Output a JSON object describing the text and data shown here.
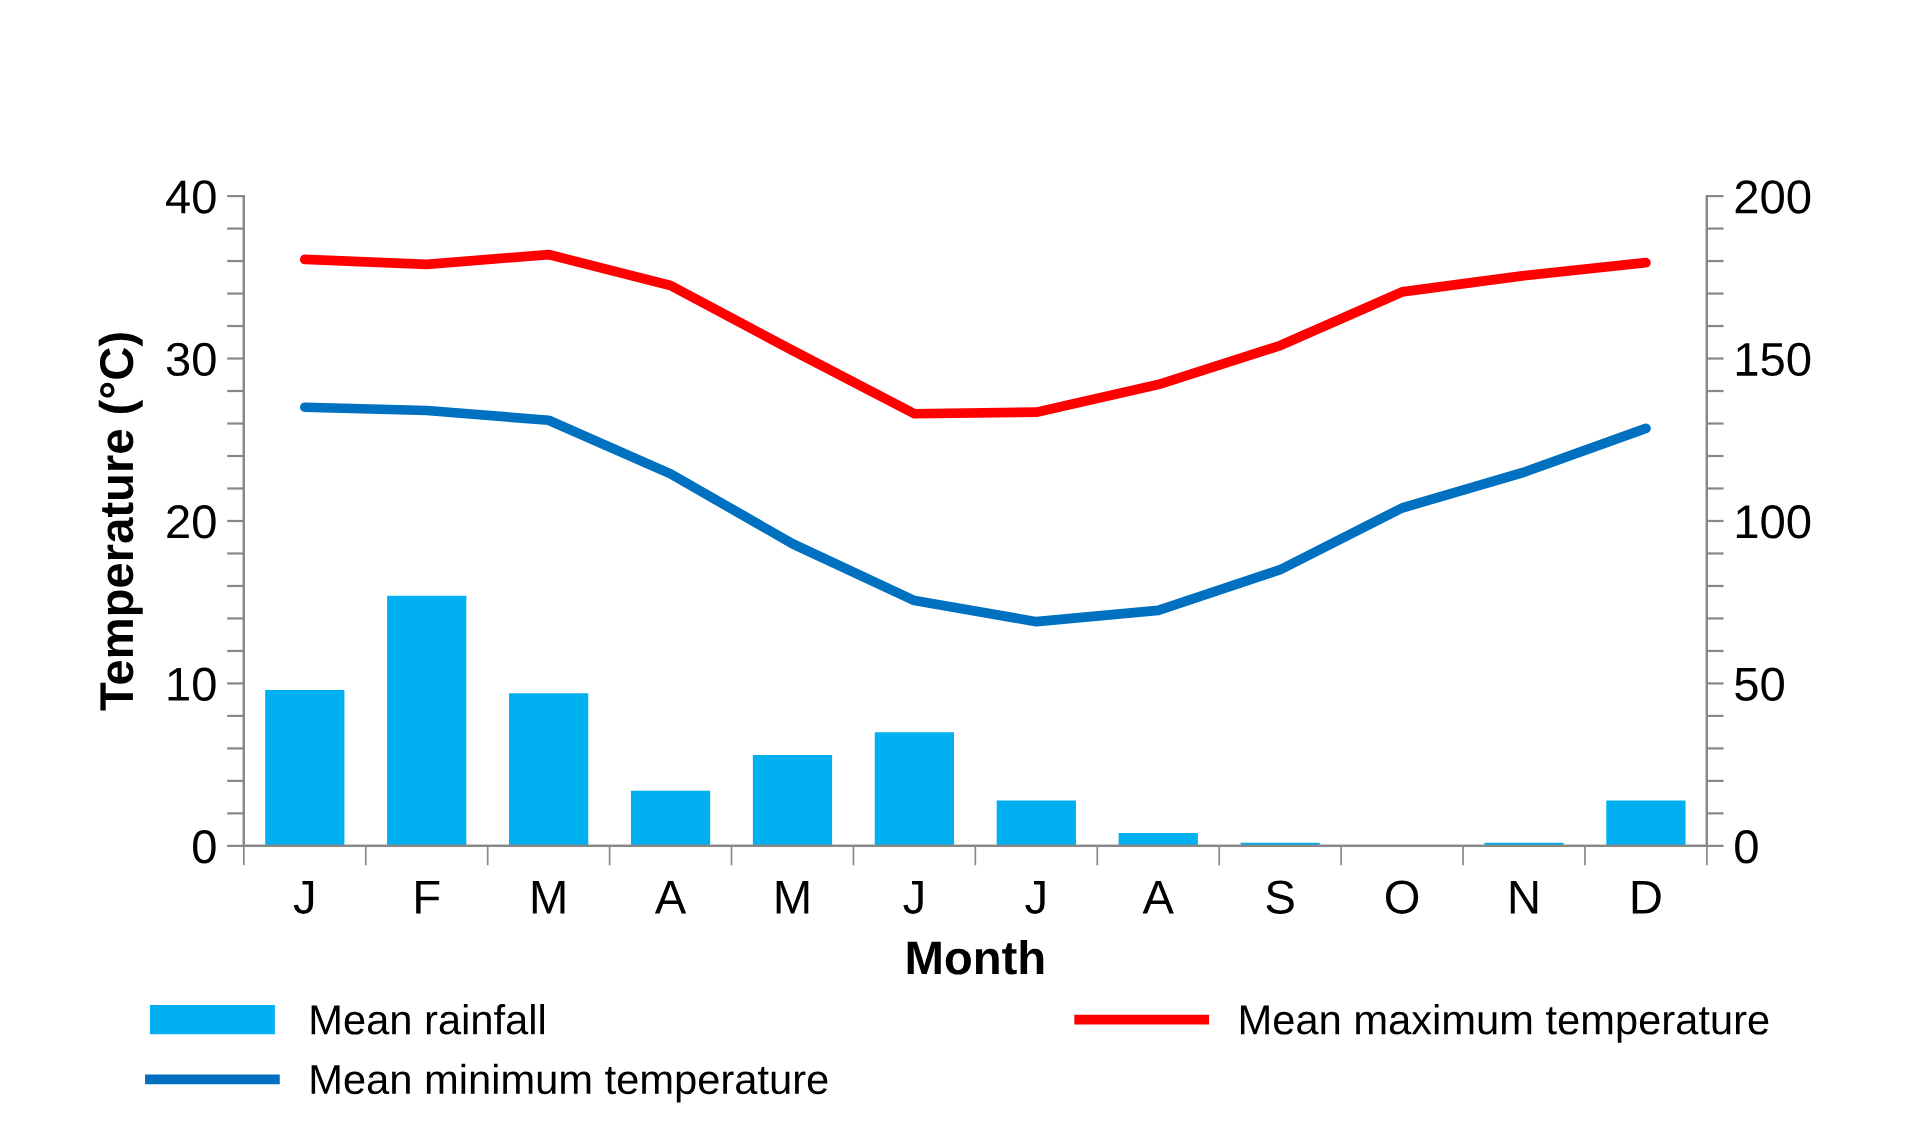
{
  "chart_data": {
    "type": "bar",
    "xlabel": "Month",
    "ylabel": "Temperature (°C)",
    "categories": [
      "J",
      "F",
      "M",
      "A",
      "M",
      "J",
      "J",
      "A",
      "S",
      "O",
      "N",
      "D"
    ],
    "series": [
      {
        "name": "Mean rainfall",
        "axis": "y2",
        "color": "#00b0f0",
        "values": [
          48,
          77,
          47,
          17,
          28,
          35,
          14,
          4,
          1,
          0,
          1,
          14
        ]
      },
      {
        "name": "Mean maximum temperature",
        "type": "line",
        "color": "#ff0000",
        "values": [
          36.1,
          35.8,
          36.4,
          34.5,
          30.5,
          26.6,
          26.7,
          28.4,
          30.8,
          34.1,
          35.1,
          35.9
        ]
      },
      {
        "name": "Mean minimum temperature",
        "type": "line",
        "color": "#0070c0",
        "values": [
          27.0,
          26.8,
          26.2,
          22.9,
          18.6,
          15.1,
          13.8,
          14.5,
          17.0,
          20.8,
          23.0,
          25.7
        ]
      }
    ],
    "ylim": [
      0,
      40
    ],
    "yticks": [
      0,
      {
        "value": 2,
        "label": null
      },
      {
        "value": 4,
        "label": null
      },
      {
        "value": 6,
        "label": null
      },
      {
        "value": 8,
        "label": null
      },
      10,
      {
        "value": 12,
        "label": null
      },
      {
        "value": 14,
        "label": null
      },
      {
        "value": 16,
        "label": null
      },
      {
        "value": 18,
        "label": null
      },
      20,
      {
        "value": 22,
        "label": null
      },
      {
        "value": 24,
        "label": null
      },
      {
        "value": 26,
        "label": null
      },
      {
        "value": 28,
        "label": null
      },
      30,
      {
        "value": 32,
        "label": null
      },
      {
        "value": 34,
        "label": null
      },
      {
        "value": 36,
        "label": null
      },
      {
        "value": 38,
        "label": null
      },
      40
    ],
    "y2lim": [
      0,
      200
    ],
    "y2ticks": [
      0,
      {
        "value": 10,
        "label": null
      },
      {
        "value": 20,
        "label": null
      },
      {
        "value": 30,
        "label": null
      },
      {
        "value": 40,
        "label": null
      },
      50,
      {
        "value": 60,
        "label": null
      },
      {
        "value": 70,
        "label": null
      },
      {
        "value": 80,
        "label": null
      },
      {
        "value": 90,
        "label": null
      },
      100,
      {
        "value": 110,
        "label": null
      },
      {
        "value": 120,
        "label": null
      },
      {
        "value": 130,
        "label": null
      },
      {
        "value": 140,
        "label": null
      },
      150,
      {
        "value": 160,
        "label": null
      },
      {
        "value": 170,
        "label": null
      },
      {
        "value": 180,
        "label": null
      },
      {
        "value": 190,
        "label": null
      },
      200
    ],
    "grid": false,
    "legend": "bottom",
    "marker": "none",
    "line_style": "solid"
  }
}
